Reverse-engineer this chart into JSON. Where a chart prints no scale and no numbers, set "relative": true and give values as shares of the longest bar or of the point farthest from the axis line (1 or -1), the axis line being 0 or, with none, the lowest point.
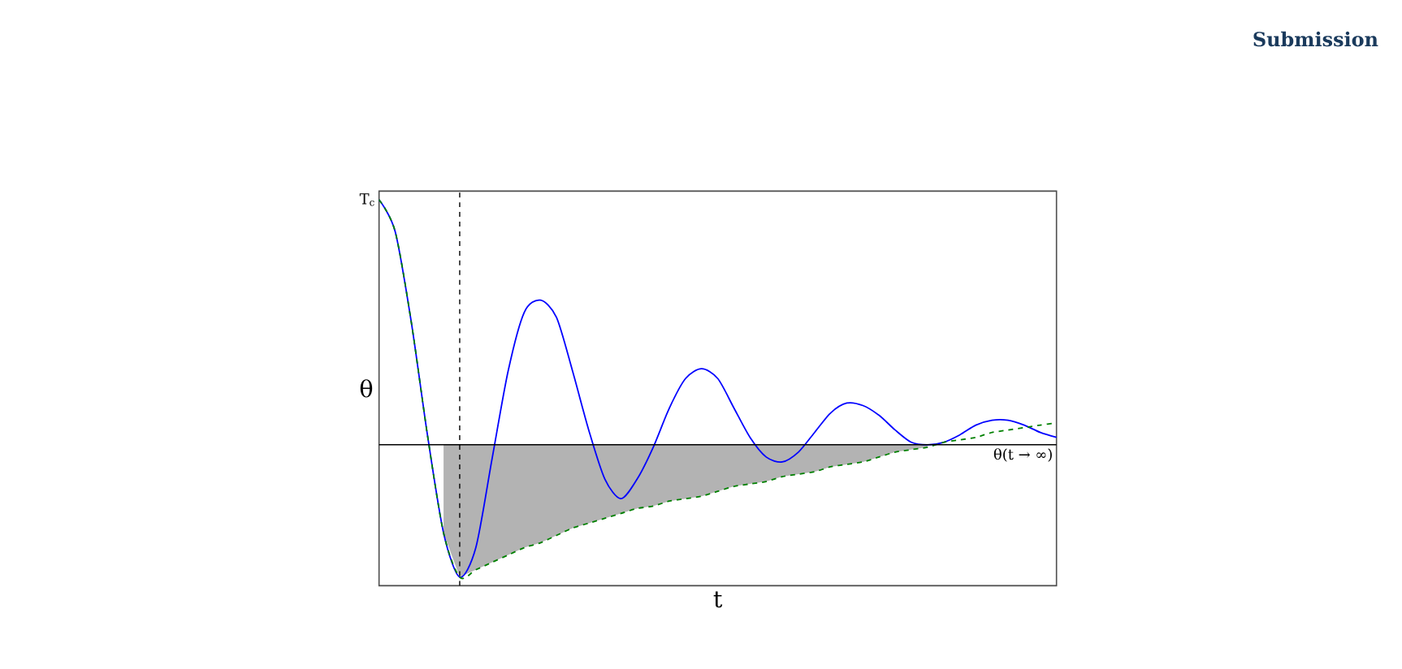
{
  "chart_data": {
    "type": "line",
    "relative": true,
    "xlabel": "t",
    "ylabel": "θ",
    "categories": [
      null,
      null,
      null,
      null,
      null,
      null,
      null,
      null,
      null,
      null,
      null,
      null,
      null,
      null,
      null,
      null,
      null,
      null,
      null,
      null,
      null,
      null,
      null,
      null,
      null,
      null,
      null,
      null,
      null,
      null,
      null,
      null,
      null,
      null,
      null,
      null,
      null,
      null,
      null,
      null,
      null,
      null,
      null
    ],
    "series": [
      {
        "type": "area",
        "color": "#b3b3b3",
        "values": [
          null,
          null,
          null,
          null,
          -0.36,
          -0.54,
          -0.51,
          -0.48,
          -0.45,
          -0.42,
          -0.4,
          -0.37,
          -0.34,
          -0.32,
          -0.3,
          -0.28,
          -0.26,
          -0.25,
          -0.23,
          -0.22,
          -0.21,
          -0.19,
          -0.17,
          -0.16,
          -0.15,
          -0.13,
          -0.12,
          -0.11,
          -0.09,
          -0.08,
          -0.07,
          -0.05,
          -0.03,
          -0.02,
          -0.01,
          null,
          null,
          null,
          null,
          null,
          null,
          null,
          null
        ]
      },
      {
        "color": "#0000ff",
        "line_style": "solid",
        "values": [
          1.0,
          0.87,
          0.5,
          0.04,
          -0.36,
          -0.54,
          -0.42,
          -0.06,
          0.3,
          0.54,
          0.59,
          0.52,
          0.3,
          0.06,
          -0.14,
          -0.22,
          -0.14,
          -0.01,
          0.15,
          0.27,
          0.31,
          0.27,
          0.15,
          0.03,
          -0.05,
          -0.07,
          -0.03,
          0.05,
          0.13,
          0.17,
          0.16,
          0.12,
          0.06,
          0.01,
          0.0,
          0.01,
          0.04,
          0.08,
          0.1,
          0.1,
          0.08,
          0.05,
          0.03
        ]
      },
      {
        "color": "#008000",
        "line_style": "dashed",
        "values": [
          1.0,
          0.87,
          0.5,
          0.04,
          -0.36,
          -0.54,
          -0.51,
          -0.48,
          -0.45,
          -0.42,
          -0.4,
          -0.37,
          -0.34,
          -0.32,
          -0.3,
          -0.28,
          -0.26,
          -0.25,
          -0.23,
          -0.22,
          -0.21,
          -0.19,
          -0.17,
          -0.16,
          -0.15,
          -0.13,
          -0.12,
          -0.11,
          -0.09,
          -0.08,
          -0.07,
          -0.05,
          -0.03,
          -0.02,
          -0.01,
          0.01,
          0.02,
          0.03,
          0.05,
          0.06,
          0.07,
          0.08,
          0.09
        ]
      }
    ],
    "ref_lines": [
      {
        "axis": "y",
        "value": 0,
        "label": "θ(t → ∞)",
        "color": "#000000",
        "line_style": "solid"
      }
    ],
    "annotations": [
      "T$_{c}$",
      "Submission"
    ]
  }
}
